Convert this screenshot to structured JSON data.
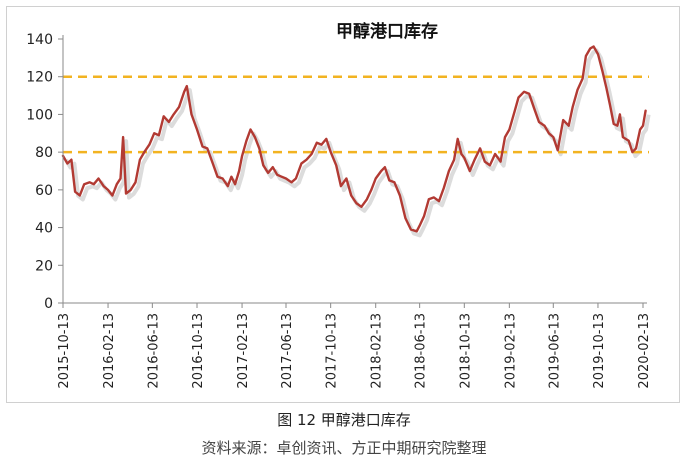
{
  "figure": {
    "caption": "图 12  甲醇港口库存",
    "source": "资料来源：卓创资讯、方正中期研究院整理"
  },
  "chart_data": {
    "type": "line",
    "title": "甲醇港口库存",
    "xlabel": "",
    "ylabel": "",
    "ylim": [
      0,
      140
    ],
    "y_ticks": [
      0,
      20,
      40,
      60,
      80,
      100,
      120,
      140
    ],
    "x_ticks": [
      "2015-10-13",
      "2016-02-13",
      "2016-06-13",
      "2016-10-13",
      "2017-02-13",
      "2017-06-13",
      "2017-10-13",
      "2018-02-13",
      "2018-06-13",
      "2018-10-13",
      "2019-02-13",
      "2019-06-13",
      "2019-10-13",
      "2020-02-13"
    ],
    "grid": false,
    "legend": "none",
    "colors": {
      "series": "#b23a33",
      "reference": "#f2b321"
    },
    "reference_lines": [
      120,
      80
    ],
    "series": [
      {
        "points": [
          [
            "2015-10-13",
            78
          ],
          [
            "2015-10-25",
            74
          ],
          [
            "2015-11-05",
            76
          ],
          [
            "2015-11-15",
            59
          ],
          [
            "2015-11-28",
            57
          ],
          [
            "2015-12-10",
            63
          ],
          [
            "2015-12-25",
            64
          ],
          [
            "2016-01-05",
            63
          ],
          [
            "2016-01-18",
            66
          ],
          [
            "2016-02-01",
            62
          ],
          [
            "2016-02-13",
            60
          ],
          [
            "2016-02-25",
            57
          ],
          [
            "2016-03-08",
            63
          ],
          [
            "2016-03-18",
            66
          ],
          [
            "2016-03-25",
            88
          ],
          [
            "2016-04-02",
            58
          ],
          [
            "2016-04-15",
            60
          ],
          [
            "2016-04-28",
            64
          ],
          [
            "2016-05-10",
            76
          ],
          [
            "2016-05-22",
            80
          ],
          [
            "2016-06-05",
            84
          ],
          [
            "2016-06-18",
            90
          ],
          [
            "2016-07-01",
            89
          ],
          [
            "2016-07-14",
            99
          ],
          [
            "2016-07-28",
            96
          ],
          [
            "2016-08-10",
            100
          ],
          [
            "2016-08-25",
            104
          ],
          [
            "2016-09-08",
            112
          ],
          [
            "2016-09-15",
            115
          ],
          [
            "2016-09-28",
            100
          ],
          [
            "2016-10-13",
            92
          ],
          [
            "2016-10-28",
            83
          ],
          [
            "2016-11-10",
            82
          ],
          [
            "2016-11-25",
            74
          ],
          [
            "2016-12-08",
            67
          ],
          [
            "2016-12-22",
            66
          ],
          [
            "2017-01-05",
            62
          ],
          [
            "2017-01-15",
            67
          ],
          [
            "2017-01-25",
            63
          ],
          [
            "2017-02-05",
            70
          ],
          [
            "2017-02-13",
            78
          ],
          [
            "2017-02-25",
            86
          ],
          [
            "2017-03-08",
            92
          ],
          [
            "2017-03-20",
            88
          ],
          [
            "2017-04-01",
            82
          ],
          [
            "2017-04-12",
            73
          ],
          [
            "2017-04-25",
            69
          ],
          [
            "2017-05-08",
            72
          ],
          [
            "2017-05-20",
            68
          ],
          [
            "2017-06-01",
            67
          ],
          [
            "2017-06-13",
            66
          ],
          [
            "2017-06-28",
            64
          ],
          [
            "2017-07-10",
            66
          ],
          [
            "2017-07-25",
            74
          ],
          [
            "2017-08-08",
            76
          ],
          [
            "2017-08-22",
            79
          ],
          [
            "2017-09-05",
            85
          ],
          [
            "2017-09-18",
            84
          ],
          [
            "2017-10-01",
            87
          ],
          [
            "2017-10-13",
            80
          ],
          [
            "2017-10-28",
            73
          ],
          [
            "2017-11-10",
            62
          ],
          [
            "2017-11-25",
            66
          ],
          [
            "2017-12-08",
            57
          ],
          [
            "2017-12-22",
            53
          ],
          [
            "2018-01-05",
            51
          ],
          [
            "2018-01-20",
            55
          ],
          [
            "2018-02-01",
            60
          ],
          [
            "2018-02-13",
            66
          ],
          [
            "2018-02-28",
            70
          ],
          [
            "2018-03-10",
            72
          ],
          [
            "2018-03-22",
            65
          ],
          [
            "2018-04-05",
            64
          ],
          [
            "2018-04-20",
            57
          ],
          [
            "2018-05-05",
            45
          ],
          [
            "2018-05-20",
            39
          ],
          [
            "2018-06-05",
            38
          ],
          [
            "2018-06-13",
            41
          ],
          [
            "2018-06-25",
            46
          ],
          [
            "2018-07-08",
            55
          ],
          [
            "2018-07-22",
            56
          ],
          [
            "2018-08-05",
            54
          ],
          [
            "2018-08-18",
            61
          ],
          [
            "2018-09-01",
            70
          ],
          [
            "2018-09-15",
            76
          ],
          [
            "2018-09-25",
            87
          ],
          [
            "2018-10-05",
            79
          ],
          [
            "2018-10-13",
            77
          ],
          [
            "2018-10-28",
            70
          ],
          [
            "2018-11-10",
            76
          ],
          [
            "2018-11-25",
            82
          ],
          [
            "2018-12-08",
            75
          ],
          [
            "2018-12-22",
            73
          ],
          [
            "2019-01-05",
            79
          ],
          [
            "2019-01-20",
            75
          ],
          [
            "2019-02-01",
            88
          ],
          [
            "2019-02-13",
            92
          ],
          [
            "2019-02-28",
            102
          ],
          [
            "2019-03-10",
            109
          ],
          [
            "2019-03-25",
            112
          ],
          [
            "2019-04-08",
            111
          ],
          [
            "2019-04-22",
            103
          ],
          [
            "2019-05-05",
            96
          ],
          [
            "2019-05-20",
            94
          ],
          [
            "2019-06-01",
            90
          ],
          [
            "2019-06-13",
            88
          ],
          [
            "2019-06-25",
            81
          ],
          [
            "2019-07-10",
            97
          ],
          [
            "2019-07-25",
            94
          ],
          [
            "2019-08-05",
            104
          ],
          [
            "2019-08-18",
            113
          ],
          [
            "2019-09-01",
            119
          ],
          [
            "2019-09-10",
            131
          ],
          [
            "2019-09-22",
            135
          ],
          [
            "2019-10-01",
            136
          ],
          [
            "2019-10-13",
            132
          ],
          [
            "2019-10-25",
            123
          ],
          [
            "2019-11-05",
            114
          ],
          [
            "2019-11-15",
            105
          ],
          [
            "2019-11-25",
            95
          ],
          [
            "2019-12-05",
            94
          ],
          [
            "2019-12-12",
            100
          ],
          [
            "2019-12-20",
            88
          ],
          [
            "2020-01-05",
            86
          ],
          [
            "2020-01-15",
            80
          ],
          [
            "2020-01-25",
            82
          ],
          [
            "2020-02-05",
            92
          ],
          [
            "2020-02-13",
            94
          ],
          [
            "2020-02-20",
            102
          ]
        ]
      }
    ]
  }
}
